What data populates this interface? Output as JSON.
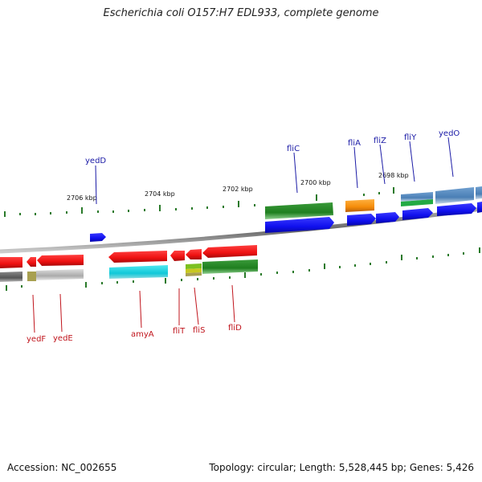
{
  "title": "Escherichia coli O157:H7 EDL933, complete genome",
  "footer": {
    "accession": "Accession: NC_002655",
    "summary": "Topology: circular; Length: 5,528,445 bp; Genes: 5,426"
  },
  "kbp_labels": [
    "2706 kbp",
    "2704 kbp",
    "2702 kbp",
    "2700 kbp",
    "2698 kbp"
  ],
  "top_labels": [
    "yedD",
    "fliC",
    "fliA",
    "fliZ",
    "fliY",
    "yedO"
  ],
  "bottom_labels": [
    "yedF",
    "yedE",
    "amyA",
    "fliT",
    "fliS",
    "fliD"
  ],
  "colors": {
    "forward_cds": "#1010ee",
    "reverse_cds": "#ee1111",
    "green_track": "#1f7f1f",
    "orange_track": "#f58c0a",
    "cyan_track": "#10c8d8",
    "steel_track": "#4a7fb5",
    "gray_track": "#aaaaaa",
    "olive_track": "#a8a050",
    "tick": "#2a7a2a",
    "backbone": "#777777",
    "label_top": "#1a1aa6",
    "label_bottom": "#c0141c"
  }
}
